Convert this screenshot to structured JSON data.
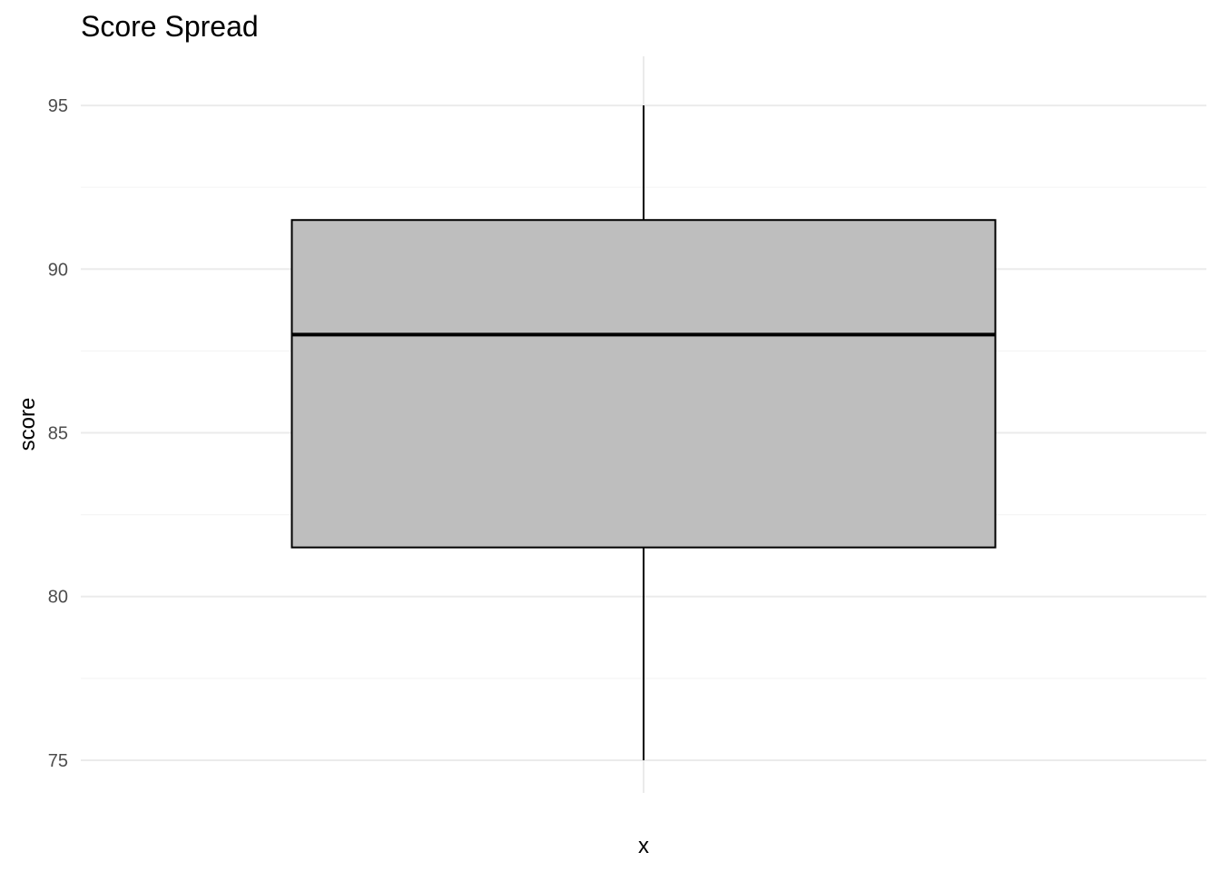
{
  "chart_data": {
    "type": "boxplot",
    "title": "Score Spread",
    "xlabel": "x",
    "ylabel": "score",
    "ylim": [
      74,
      96.5
    ],
    "yticks": [
      75,
      80,
      85,
      90,
      95
    ],
    "y_minor_ticks": [
      77.5,
      82.5,
      87.5,
      92.5
    ],
    "categories": [
      ""
    ],
    "boxes": [
      {
        "min": 75,
        "q1": 81.5,
        "median": 88,
        "q3": 91.5,
        "max": 95
      }
    ],
    "grid": true,
    "legend": "none",
    "colors": {
      "box_fill": "#bebebe",
      "box_stroke": "#000000",
      "grid_major": "#ebebeb",
      "grid_minor": "#f5f5f5",
      "tick_text": "#4d4d4d"
    }
  }
}
